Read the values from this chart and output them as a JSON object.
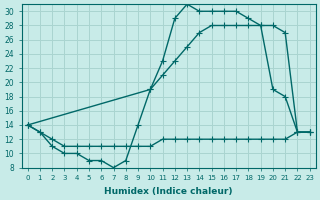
{
  "xlabel": "Humidex (Indice chaleur)",
  "background_color": "#c8ebe8",
  "grid_color": "#aad4d0",
  "line_color": "#006868",
  "xlim": [
    -0.5,
    23.5
  ],
  "ylim": [
    8,
    31
  ],
  "xticks": [
    0,
    1,
    2,
    3,
    4,
    5,
    6,
    7,
    8,
    9,
    10,
    11,
    12,
    13,
    14,
    15,
    16,
    17,
    18,
    19,
    20,
    21,
    22,
    23
  ],
  "yticks": [
    8,
    10,
    12,
    14,
    16,
    18,
    20,
    22,
    24,
    26,
    28,
    30
  ],
  "line_jagged_x": [
    0,
    1,
    2,
    3,
    4,
    5,
    6,
    7,
    8,
    9,
    10,
    11,
    12,
    13,
    14,
    15,
    16,
    17,
    18,
    19,
    20,
    21,
    22,
    23
  ],
  "line_jagged_y": [
    14,
    13,
    11,
    10,
    10,
    9,
    9,
    8,
    9,
    14,
    19,
    23,
    29,
    31,
    30,
    30,
    30,
    30,
    29,
    28,
    19,
    18,
    13,
    13
  ],
  "line_upper_x": [
    0,
    10,
    11,
    12,
    13,
    14,
    15,
    16,
    17,
    18,
    19,
    20,
    21,
    22,
    23
  ],
  "line_upper_y": [
    14,
    19,
    21,
    23,
    25,
    27,
    28,
    28,
    28,
    28,
    28,
    28,
    27,
    13,
    13
  ],
  "line_lower_x": [
    0,
    1,
    2,
    3,
    4,
    5,
    6,
    7,
    8,
    9,
    10,
    11,
    12,
    13,
    14,
    15,
    16,
    17,
    18,
    19,
    20,
    21,
    22,
    23
  ],
  "line_lower_y": [
    14,
    13,
    12,
    11,
    11,
    11,
    11,
    11,
    11,
    11,
    11,
    12,
    12,
    12,
    12,
    12,
    12,
    12,
    12,
    12,
    12,
    12,
    13,
    13
  ],
  "marker_size": 2.5,
  "line_width": 1.0
}
